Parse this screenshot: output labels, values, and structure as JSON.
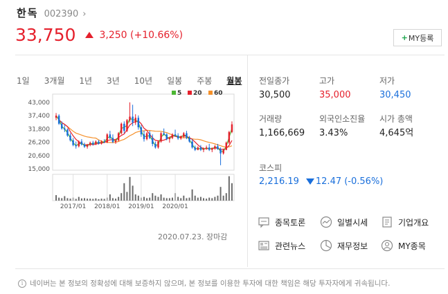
{
  "stock": {
    "name": "한독",
    "code": "002390",
    "price": "33,750",
    "change": "3,250 (+10.66%)",
    "colors": {
      "up": "#e5202c",
      "down": "#1a6fdb"
    }
  },
  "my_button": {
    "plus": "+",
    "label": "MY등록"
  },
  "tabs": [
    "1일",
    "3개월",
    "1년",
    "3년",
    "10년",
    "일봉",
    "주봉",
    "월봉"
  ],
  "active_tab": "월봉",
  "chart_data": {
    "type": "candlestick",
    "title": "",
    "legend": [
      {
        "name": "5",
        "color": "#4cb733"
      },
      {
        "name": "20",
        "color": "#e5202c"
      },
      {
        "name": "60",
        "color": "#f5902a"
      }
    ],
    "y_ticks": [
      "43,000",
      "37,400",
      "31,800",
      "26,200",
      "20,600",
      "15,000"
    ],
    "ylim": [
      15000,
      43000
    ],
    "x_ticks": [
      "2017/01",
      "2018/01",
      "2019/01",
      "2020/01"
    ],
    "candles": [
      [
        36500,
        38500,
        35500,
        37400
      ],
      [
        37400,
        38000,
        33500,
        34000
      ],
      [
        34000,
        35000,
        31500,
        32000
      ],
      [
        32000,
        33500,
        30500,
        31500
      ],
      [
        31500,
        32000,
        28500,
        29000
      ],
      [
        29000,
        30000,
        26500,
        27000
      ],
      [
        27000,
        28000,
        24500,
        25000
      ],
      [
        25000,
        26500,
        23500,
        24500
      ],
      [
        24500,
        27000,
        24000,
        26500
      ],
      [
        26500,
        27500,
        24800,
        25200
      ],
      [
        25200,
        26000,
        23800,
        24300
      ],
      [
        24300,
        25500,
        23500,
        25000
      ],
      [
        25000,
        26500,
        24500,
        26000
      ],
      [
        26000,
        26800,
        24800,
        25300
      ],
      [
        25300,
        27000,
        25000,
        26500
      ],
      [
        26500,
        27200,
        25200,
        25600
      ],
      [
        25600,
        27000,
        25200,
        26500
      ],
      [
        26500,
        27500,
        25800,
        26200
      ],
      [
        26200,
        30000,
        25800,
        29500
      ],
      [
        29500,
        31000,
        27500,
        28000
      ],
      [
        28000,
        29500,
        25800,
        26300
      ],
      [
        26300,
        27500,
        25500,
        27000
      ],
      [
        27000,
        30500,
        26500,
        30000
      ],
      [
        30000,
        34500,
        29500,
        34000
      ],
      [
        34000,
        35000,
        30000,
        31000
      ],
      [
        31000,
        36000,
        30500,
        35500
      ],
      [
        35500,
        43000,
        34500,
        37000
      ],
      [
        37000,
        42000,
        33000,
        34500
      ],
      [
        34500,
        38000,
        33500,
        36500
      ],
      [
        36500,
        37500,
        31500,
        32500
      ],
      [
        32500,
        33500,
        28500,
        29500
      ],
      [
        29500,
        31000,
        26500,
        27500
      ],
      [
        27500,
        30500,
        27000,
        30000
      ],
      [
        30000,
        31000,
        27500,
        28000
      ],
      [
        28000,
        29500,
        24500,
        25500
      ],
      [
        25500,
        26500,
        23500,
        24000
      ],
      [
        24000,
        27000,
        23500,
        26500
      ],
      [
        26500,
        30500,
        26000,
        30000
      ],
      [
        30000,
        32000,
        29000,
        29500
      ],
      [
        29500,
        30000,
        27000,
        27500
      ],
      [
        27500,
        28500,
        26000,
        28000
      ],
      [
        28000,
        30000,
        27500,
        29500
      ],
      [
        29500,
        31500,
        28500,
        29000
      ],
      [
        29000,
        30000,
        27200,
        27800
      ],
      [
        27800,
        29000,
        27200,
        28500
      ],
      [
        28500,
        30500,
        28000,
        30000
      ],
      [
        30000,
        31000,
        27500,
        28000
      ],
      [
        28000,
        28800,
        26000,
        26500
      ],
      [
        26500,
        27500,
        23500,
        24000
      ],
      [
        24000,
        24800,
        22500,
        23000
      ],
      [
        23000,
        24500,
        22800,
        24000
      ],
      [
        24000,
        25000,
        22500,
        23000
      ],
      [
        23000,
        24000,
        22000,
        23500
      ],
      [
        23500,
        24800,
        23000,
        24000
      ],
      [
        24000,
        25500,
        22500,
        23000
      ],
      [
        23000,
        24000,
        22000,
        23800
      ],
      [
        23800,
        25000,
        23000,
        24500
      ],
      [
        24500,
        25500,
        23000,
        23300
      ],
      [
        23300,
        24000,
        16500,
        21500
      ],
      [
        21500,
        23500,
        21000,
        23000
      ],
      [
        23000,
        26500,
        22800,
        26000
      ],
      [
        26000,
        31000,
        25500,
        30500
      ],
      [
        30500,
        35000,
        30000,
        33750
      ]
    ],
    "volumes": [
      0.22,
      0.12,
      0.1,
      0.18,
      0.1,
      0.08,
      0.12,
      0.07,
      0.15,
      0.09,
      0.1,
      0.08,
      0.08,
      0.07,
      0.09,
      0.06,
      0.08,
      0.07,
      0.12,
      0.25,
      0.1,
      0.08,
      0.15,
      0.3,
      0.7,
      0.35,
      0.95,
      0.6,
      0.25,
      0.2,
      0.12,
      0.15,
      0.1,
      0.12,
      0.3,
      0.2,
      0.15,
      0.25,
      0.12,
      0.1,
      0.1,
      0.12,
      0.3,
      0.15,
      0.1,
      0.2,
      0.1,
      0.12,
      0.45,
      0.2,
      0.12,
      0.15,
      0.1,
      0.08,
      0.12,
      0.1,
      0.15,
      0.2,
      0.55,
      0.2,
      0.3,
      0.98,
      0.7
    ]
  },
  "chart_date": "2020.07.23. 장마감",
  "stats": [
    {
      "label": "전일종가",
      "value": "30,500",
      "color": "normal"
    },
    {
      "label": "고가",
      "value": "35,000",
      "color": "red"
    },
    {
      "label": "저가",
      "value": "30,450",
      "color": "blue"
    },
    {
      "label": "거래량",
      "value": "1,166,669",
      "color": "normal"
    },
    {
      "label": "외국인소진율",
      "value": "3.43%",
      "color": "normal"
    },
    {
      "label": "시가 총액",
      "value": "4,645억",
      "color": "normal"
    }
  ],
  "kospi": {
    "label": "코스피",
    "value": "2,216.19",
    "change": "12.47 (-0.56%)"
  },
  "links": [
    {
      "label": "종목토론",
      "icon": "chat-icon"
    },
    {
      "label": "일별시세",
      "icon": "line-chart-icon"
    },
    {
      "label": "기업개요",
      "icon": "company-doc-icon"
    },
    {
      "label": "관련뉴스",
      "icon": "news-icon"
    },
    {
      "label": "재무정보",
      "icon": "pie-chart-icon"
    },
    {
      "label": "MY종목",
      "icon": "user-icon"
    }
  ],
  "disclaimer": "네이버는 본 정보의 정확성에 대해 보증하지 않으며, 본 정보를 이용한 투자에 대한 책임은 해당 투자자에게 귀속됩니다."
}
